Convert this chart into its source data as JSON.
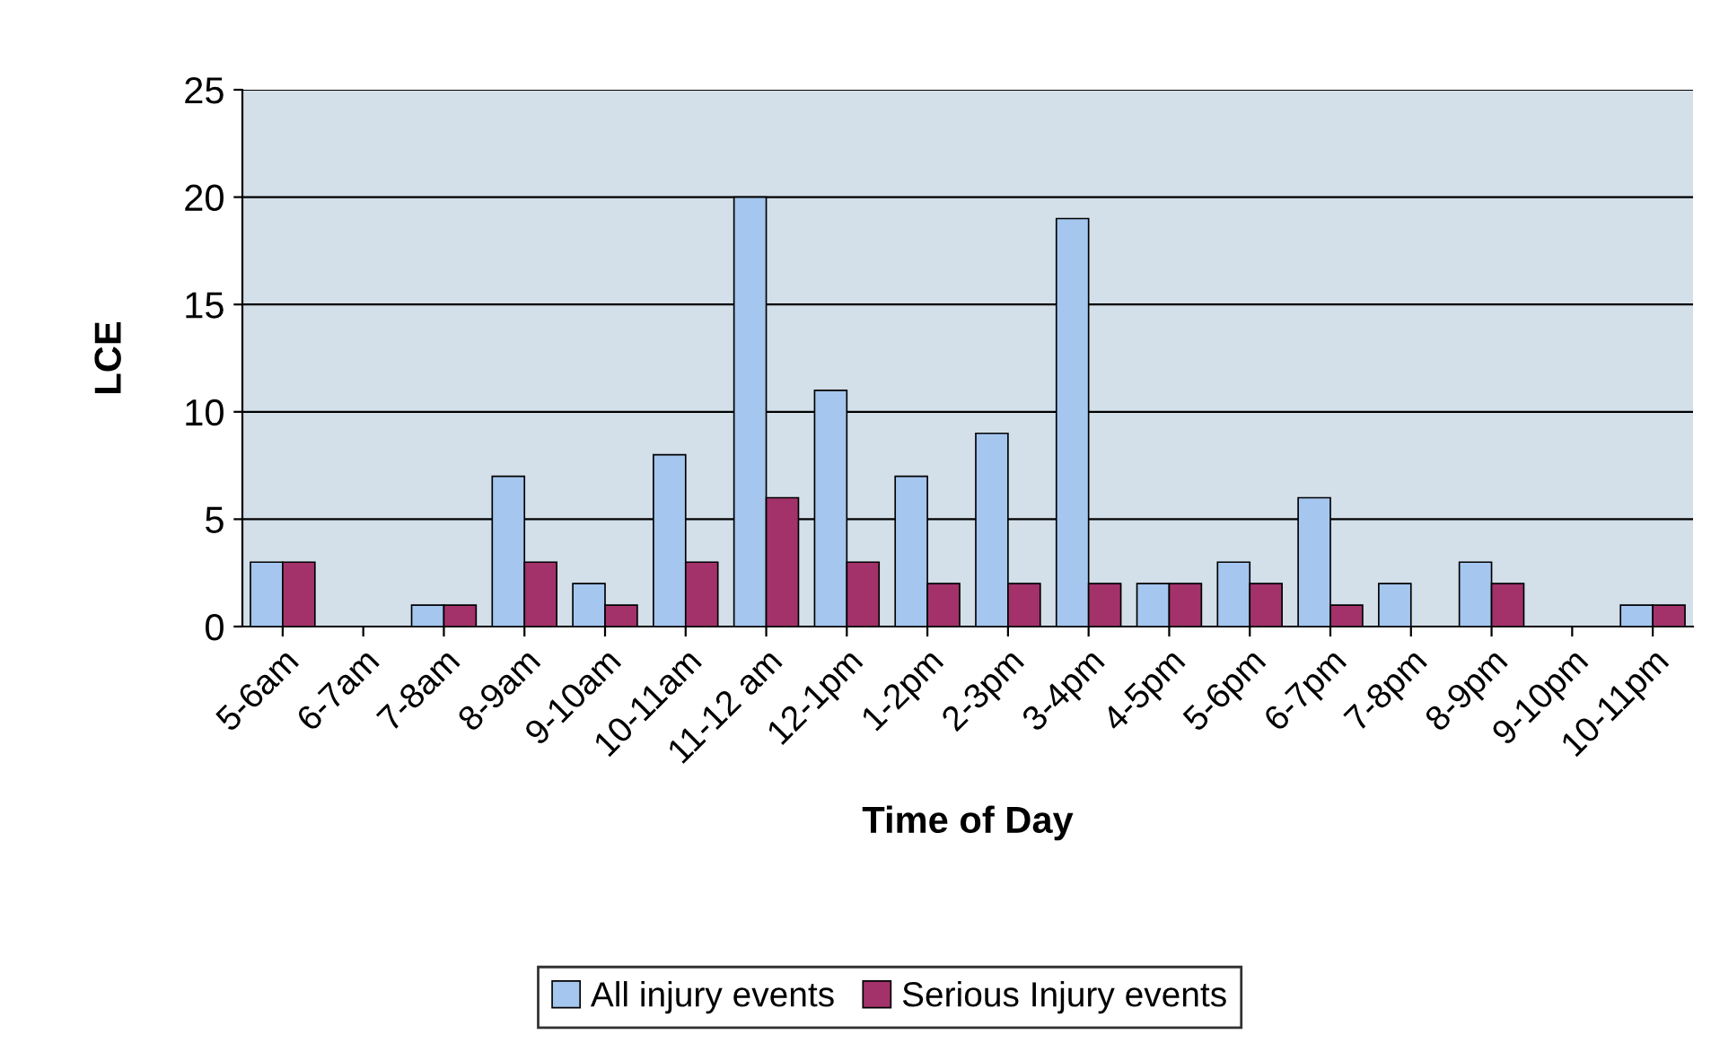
{
  "chart_data": {
    "type": "bar",
    "xlabel": "Time of Day",
    "ylabel": "LCE",
    "categories": [
      "5-6am",
      "6-7am",
      "7-8am",
      "8-9am",
      "9-10am",
      "10-11am",
      "11-12 am",
      "12-1pm",
      "1-2pm",
      "2-3pm",
      "3-4pm",
      "4-5pm",
      "5-6pm",
      "6-7pm",
      "7-8pm",
      "8-9pm",
      "9-10pm",
      "10-11pm"
    ],
    "series": [
      {
        "name": "All injury events",
        "color": "#a4c6ef",
        "values": [
          3,
          0,
          1,
          7,
          2,
          8,
          20,
          11,
          7,
          9,
          19,
          2,
          3,
          6,
          2,
          3,
          0,
          1
        ]
      },
      {
        "name": "Serious Injury events",
        "color": "#a3326a",
        "values": [
          3,
          0,
          1,
          3,
          1,
          3,
          6,
          3,
          2,
          2,
          2,
          2,
          2,
          1,
          0,
          2,
          0,
          1
        ]
      }
    ],
    "ylim": [
      0,
      25
    ],
    "yticks": [
      0,
      5,
      10,
      15,
      20,
      25
    ],
    "grid": "y",
    "legend": "bottom"
  }
}
